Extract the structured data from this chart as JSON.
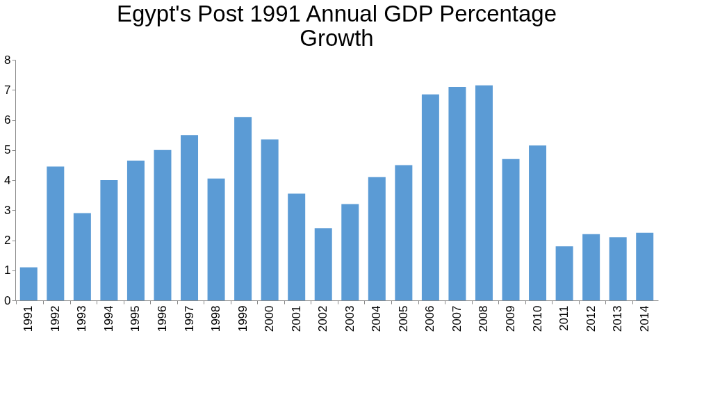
{
  "chart_data": {
    "type": "bar",
    "title": [
      "Egypt's Post 1991 Annual GDP Percentage",
      "Growth"
    ],
    "categories": [
      "1991",
      "1992",
      "1993",
      "1994",
      "1995",
      "1996",
      "1997",
      "1998",
      "1999",
      "2000",
      "2001",
      "2002",
      "2003",
      "2004",
      "2005",
      "2006",
      "2007",
      "2008",
      "2009",
      "2010",
      "2011",
      "2012",
      "2013",
      "2014"
    ],
    "values": [
      1.1,
      4.45,
      2.9,
      4.0,
      4.65,
      5.0,
      5.5,
      4.05,
      6.1,
      5.35,
      3.55,
      2.4,
      3.2,
      4.1,
      4.5,
      6.85,
      7.1,
      7.15,
      4.7,
      5.15,
      1.8,
      2.2,
      2.1,
      2.25
    ],
    "color": "#5b9bd5",
    "ylim": [
      0,
      8
    ],
    "yticks": [
      0,
      1,
      2,
      3,
      4,
      5,
      6,
      7,
      8
    ],
    "grid": false
  }
}
